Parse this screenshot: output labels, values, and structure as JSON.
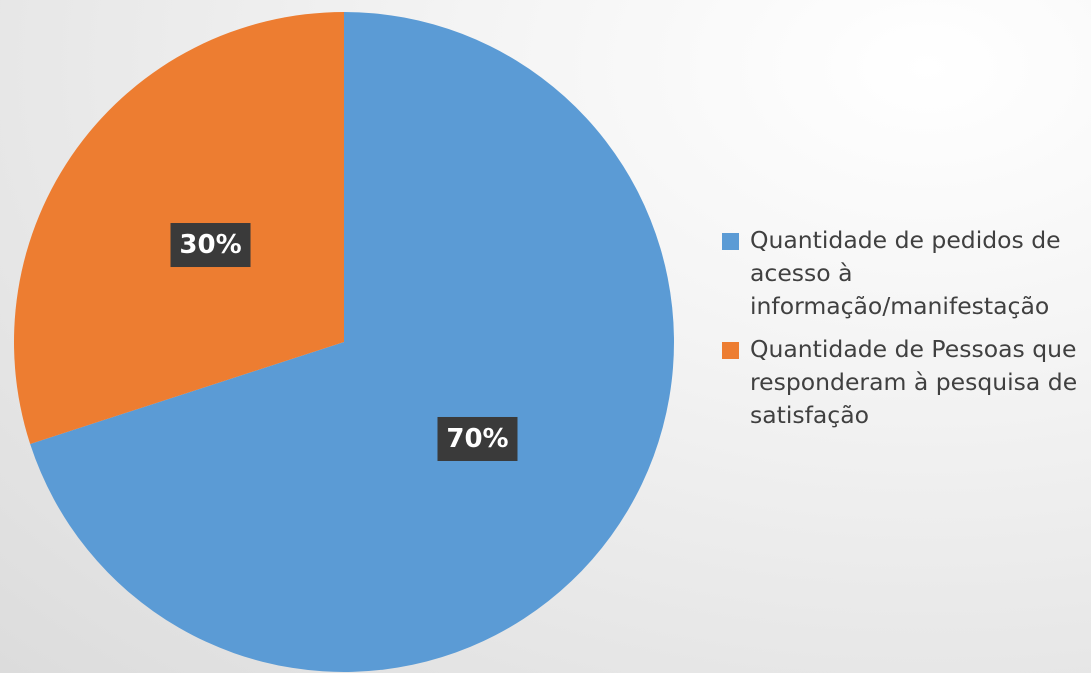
{
  "chart_data": {
    "type": "pie",
    "categories": [
      "Quantidade de pedidos de acesso à informação/manifestação",
      "Quantidade de Pessoas que responderam à pesquisa de satisfação"
    ],
    "values": [
      70,
      30
    ],
    "value_labels": [
      "70%",
      "30%"
    ],
    "colors": [
      "#5b9bd5",
      "#ed7d31"
    ],
    "legend": "right"
  }
}
